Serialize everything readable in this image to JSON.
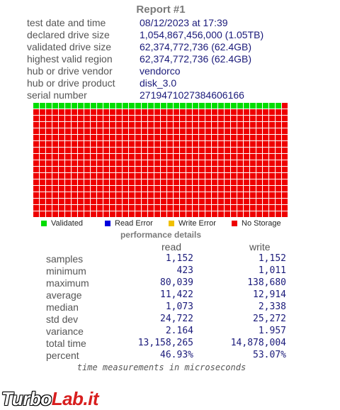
{
  "report": {
    "title": "Report #1",
    "info": [
      {
        "label": "test date and time",
        "value": "08/12/2023  at  17:39"
      },
      {
        "label": "declared drive size",
        "value": "1,054,867,456,000 (1.05TB)"
      },
      {
        "label": "validated drive size",
        "value": "62,374,772,736 (62.4GB)"
      },
      {
        "label": "highest valid region",
        "value": "62,374,772,736 (62.4GB)"
      },
      {
        "label": "hub or drive vendor",
        "value": "vendorco"
      },
      {
        "label": "hub or drive product",
        "value": "disk_3.0"
      },
      {
        "label": "serial number",
        "value": "2719471027384606166"
      }
    ]
  },
  "sector_map": {
    "columns": 40,
    "rows": 18,
    "validated_cells": 39,
    "colors": {
      "validated": "#00dd00",
      "read_error": "#0000dd",
      "write_error": "#f0c000",
      "no_storage": "#ee0000"
    }
  },
  "legend": [
    {
      "label": "Validated",
      "color": "#00dd00"
    },
    {
      "label": "Read Error",
      "color": "#0000dd"
    },
    {
      "label": "Write Error",
      "color": "#f0c000"
    },
    {
      "label": "No Storage",
      "color": "#ee0000"
    }
  ],
  "performance": {
    "title": "performance details",
    "read_header": "read",
    "write_header": "write",
    "rows": [
      {
        "label": "samples",
        "read": "1,152",
        "write": "1,152"
      },
      {
        "label": "minimum",
        "read": "423",
        "write": "1,011"
      },
      {
        "label": "maximum",
        "read": "80,039",
        "write": "138,680"
      },
      {
        "label": "average",
        "read": "11,422",
        "write": "12,914"
      },
      {
        "label": "median",
        "read": "1,073",
        "write": "2,338"
      },
      {
        "label": "std dev",
        "read": "24,722",
        "write": "25,272"
      },
      {
        "label": "variance",
        "read": "2.164",
        "write": "1.957"
      },
      {
        "label": "total time",
        "read": "13,158,265",
        "write": "14,878,004"
      },
      {
        "label": "percent",
        "read": "46.93%",
        "write": "53.07%"
      }
    ],
    "footnote": "time measurements in microseconds"
  },
  "watermark": {
    "part1": "Turbo",
    "part2": "Lab.it"
  }
}
